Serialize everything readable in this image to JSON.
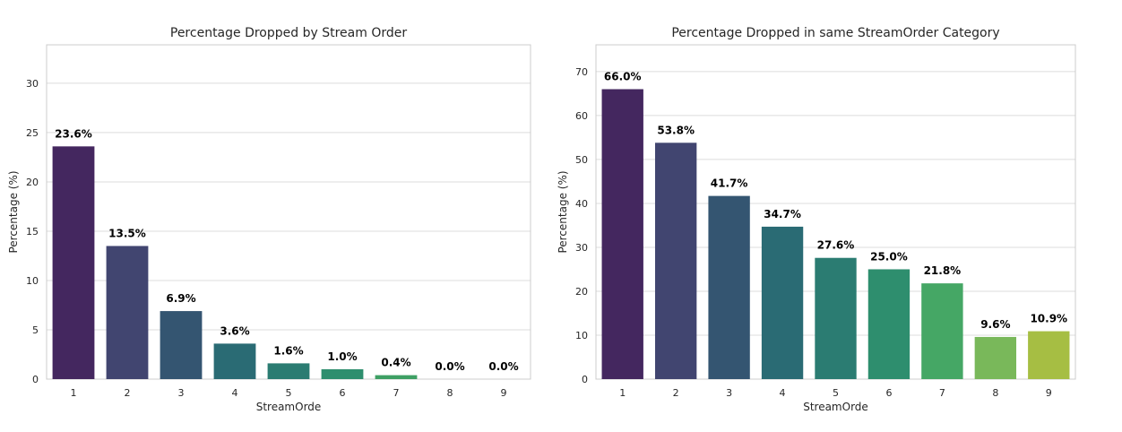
{
  "chart_data": [
    {
      "type": "bar",
      "title": "Percentage Dropped by Stream Order",
      "xlabel": "StreamOrde",
      "ylabel": "Percentage (%)",
      "categories": [
        "1",
        "2",
        "3",
        "4",
        "5",
        "6",
        "7",
        "8",
        "9"
      ],
      "values": [
        23.6,
        13.5,
        6.9,
        3.6,
        1.6,
        1.0,
        0.4,
        0.0,
        0.0
      ],
      "data_labels": [
        "23.6%",
        "13.5%",
        "6.9%",
        "3.6%",
        "1.6%",
        "1.0%",
        "0.4%",
        "0.0%",
        "0.0%"
      ],
      "ylim": [
        0,
        33.9
      ],
      "yticks": [
        0,
        5,
        10,
        15,
        20,
        25,
        30
      ],
      "grid": true,
      "colors": [
        "#44275f",
        "#414570",
        "#345571",
        "#2a6b74",
        "#2b7c72",
        "#2e8e6e",
        "#3ea064",
        "#79b85a",
        "#a6be43"
      ]
    },
    {
      "type": "bar",
      "title": "Percentage Dropped in same StreamOrder Category",
      "xlabel": "StreamOrde",
      "ylabel": "Percentage (%)",
      "categories": [
        "1",
        "2",
        "3",
        "4",
        "5",
        "6",
        "7",
        "8",
        "9"
      ],
      "values": [
        66.0,
        53.8,
        41.7,
        34.7,
        27.6,
        25.0,
        21.8,
        9.6,
        10.9
      ],
      "data_labels": [
        "66.0%",
        "53.8%",
        "41.7%",
        "34.7%",
        "27.6%",
        "25.0%",
        "21.8%",
        "9.6%",
        "10.9%"
      ],
      "ylim": [
        0,
        76.1
      ],
      "yticks": [
        0,
        10,
        20,
        30,
        40,
        50,
        60,
        70
      ],
      "grid": true,
      "colors": [
        "#44275f",
        "#414570",
        "#345571",
        "#2a6b74",
        "#2b7c72",
        "#2e8e6e",
        "#45a765",
        "#79b85a",
        "#a6be43"
      ]
    }
  ]
}
